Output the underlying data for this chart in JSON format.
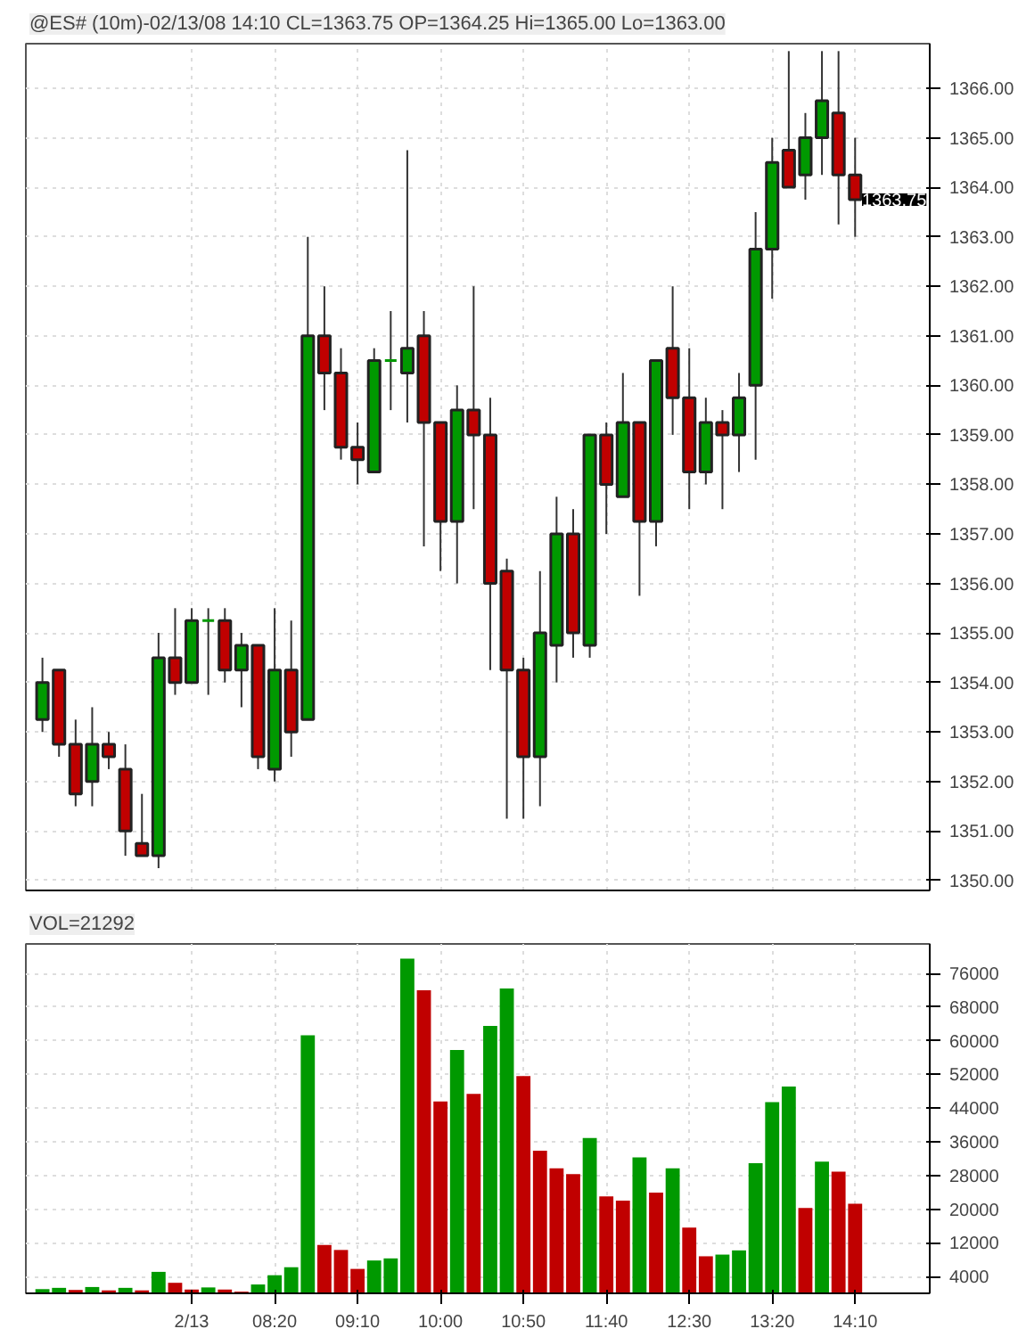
{
  "chart_data": [
    {
      "type": "candlestick",
      "title": "@ES# (10m)-02/13/08 14:10 CL=1363.75 OP=1364.25 Hi=1365.00 Lo=1363.00",
      "categories": [
        null,
        null,
        null,
        null,
        null,
        null,
        null,
        null,
        null,
        null,
        null,
        null,
        null,
        null,
        null,
        null,
        null,
        null,
        null,
        null,
        null,
        null,
        null,
        null,
        null,
        null,
        null,
        null,
        null,
        null,
        null,
        null,
        null,
        null,
        null,
        null,
        null,
        null,
        null,
        null,
        null,
        null,
        null,
        null,
        null,
        null,
        null,
        null,
        null,
        null
      ],
      "ohlc": [
        [
          1353.25,
          1354.5,
          1353.0,
          1354.0
        ],
        [
          1354.25,
          1354.25,
          1352.5,
          1352.75
        ],
        [
          1352.75,
          1353.25,
          1351.5,
          1351.75
        ],
        [
          1352.0,
          1353.5,
          1351.5,
          1352.75
        ],
        [
          1352.75,
          1353.0,
          1352.25,
          1352.5
        ],
        [
          1352.25,
          1352.75,
          1350.5,
          1351.0
        ],
        [
          1350.75,
          1351.75,
          1350.5,
          1350.5
        ],
        [
          1350.5,
          1355.0,
          1350.25,
          1354.5
        ],
        [
          1354.5,
          1355.5,
          1353.75,
          1354.0
        ],
        [
          1354.0,
          1355.5,
          1354.0,
          1355.25
        ],
        [
          1355.25,
          1355.5,
          1353.75,
          1355.25
        ],
        [
          1355.25,
          1355.5,
          1354.0,
          1354.25
        ],
        [
          1354.25,
          1355.0,
          1353.5,
          1354.75
        ],
        [
          1354.75,
          1354.75,
          1352.25,
          1352.5
        ],
        [
          1352.25,
          1355.5,
          1352.0,
          1354.25
        ],
        [
          1354.25,
          1355.25,
          1352.5,
          1353.0
        ],
        [
          1353.25,
          1363.0,
          1353.25,
          1361.0
        ],
        [
          1361.0,
          1362.0,
          1359.5,
          1360.25
        ],
        [
          1360.25,
          1360.75,
          1358.5,
          1358.75
        ],
        [
          1358.75,
          1359.25,
          1358.0,
          1358.5
        ],
        [
          1358.25,
          1360.75,
          1358.25,
          1360.5
        ],
        [
          1360.5,
          1361.5,
          1359.5,
          1360.5
        ],
        [
          1360.25,
          1364.75,
          1359.25,
          1360.75
        ],
        [
          1361.0,
          1361.5,
          1356.75,
          1359.25
        ],
        [
          1359.25,
          1359.25,
          1356.25,
          1357.25
        ],
        [
          1357.25,
          1360.0,
          1356.0,
          1359.5
        ],
        [
          1359.5,
          1362.0,
          1357.5,
          1359.0
        ],
        [
          1359.0,
          1359.75,
          1354.25,
          1356.0
        ],
        [
          1356.25,
          1356.5,
          1351.25,
          1354.25
        ],
        [
          1354.25,
          1354.5,
          1351.25,
          1352.5
        ],
        [
          1352.5,
          1356.25,
          1351.5,
          1355.0
        ],
        [
          1354.75,
          1357.75,
          1354.0,
          1357.0
        ],
        [
          1357.0,
          1357.5,
          1354.5,
          1355.0
        ],
        [
          1354.75,
          1359.0,
          1354.5,
          1359.0
        ],
        [
          1359.0,
          1359.25,
          1357.0,
          1358.0
        ],
        [
          1357.75,
          1360.25,
          1357.75,
          1359.25
        ],
        [
          1359.25,
          1359.25,
          1355.75,
          1357.25
        ],
        [
          1357.25,
          1360.5,
          1356.75,
          1360.5
        ],
        [
          1360.75,
          1362.0,
          1359.0,
          1359.75
        ],
        [
          1359.75,
          1360.75,
          1357.5,
          1358.25
        ],
        [
          1358.25,
          1359.75,
          1358.0,
          1359.25
        ],
        [
          1359.25,
          1359.5,
          1357.5,
          1359.0
        ],
        [
          1359.0,
          1360.25,
          1358.25,
          1359.75
        ],
        [
          1360.0,
          1363.5,
          1358.5,
          1362.75
        ],
        [
          1362.75,
          1365.0,
          1361.75,
          1364.5
        ],
        [
          1364.75,
          1366.75,
          1364.0,
          1364.0
        ],
        [
          1364.25,
          1365.5,
          1363.75,
          1365.0
        ],
        [
          1365.0,
          1366.75,
          1364.25,
          1365.75
        ],
        [
          1365.5,
          1366.75,
          1363.25,
          1364.25
        ],
        [
          1364.25,
          1365.0,
          1363.0,
          1363.75
        ]
      ],
      "colors": [
        "#009900",
        "#c00000",
        "#c00000",
        "#009900",
        "#c00000",
        "#c00000",
        "#c00000",
        "#009900",
        "#c00000",
        "#009900",
        "#009900",
        "#c00000",
        "#009900",
        "#c00000",
        "#009900",
        "#c00000",
        "#009900",
        "#c00000",
        "#c00000",
        "#c00000",
        "#009900",
        "#009900",
        "#009900",
        "#c00000",
        "#c00000",
        "#009900",
        "#c00000",
        "#c00000",
        "#c00000",
        "#c00000",
        "#009900",
        "#009900",
        "#c00000",
        "#009900",
        "#c00000",
        "#009900",
        "#c00000",
        "#009900",
        "#c00000",
        "#c00000",
        "#009900",
        "#c00000",
        "#009900",
        "#009900",
        "#009900",
        "#c00000",
        "#009900",
        "#009900",
        "#c00000",
        "#c00000"
      ],
      "ylim": [
        1349.8,
        1366.9
      ],
      "yticks": [
        {
          "value": 1350,
          "label": "1350.00"
        },
        {
          "value": 1351,
          "label": "1351.00"
        },
        {
          "value": 1352,
          "label": "1352.00"
        },
        {
          "value": 1353,
          "label": "1353.00"
        },
        {
          "value": 1354,
          "label": "1354.00"
        },
        {
          "value": 1355,
          "label": "1355.00"
        },
        {
          "value": 1356,
          "label": "1356.00"
        },
        {
          "value": 1357,
          "label": "1357.00"
        },
        {
          "value": 1358,
          "label": "1358.00"
        },
        {
          "value": 1359,
          "label": "1359.00"
        },
        {
          "value": 1360,
          "label": "1360.00"
        },
        {
          "value": 1361,
          "label": "1361.00"
        },
        {
          "value": 1362,
          "label": "1362.00"
        },
        {
          "value": 1363,
          "label": "1363.00"
        },
        {
          "value": 1364,
          "label": "1364.00"
        },
        {
          "value": 1365,
          "label": "1365.00"
        },
        {
          "value": 1366,
          "label": "1366.00"
        }
      ],
      "grid": true,
      "tick_labels": "y",
      "annotations": [
        "1363.75"
      ]
    },
    {
      "type": "bar",
      "title": "VOL=21292",
      "categories": [
        null,
        null,
        null,
        null,
        null,
        null,
        null,
        null,
        null,
        "2/13",
        null,
        null,
        null,
        null,
        "08:20",
        null,
        null,
        null,
        null,
        "09:10",
        null,
        null,
        null,
        null,
        "10:00",
        null,
        null,
        null,
        null,
        "10:50",
        null,
        null,
        null,
        null,
        "11:40",
        null,
        null,
        null,
        null,
        "12:30",
        null,
        null,
        null,
        null,
        "13:20",
        null,
        null,
        null,
        null,
        "14:10"
      ],
      "values": [
        1000,
        1300,
        800,
        1500,
        700,
        1300,
        700,
        5100,
        2500,
        900,
        1400,
        900,
        400,
        2100,
        4300,
        6200,
        61300,
        11500,
        10300,
        5800,
        7800,
        8300,
        79500,
        72000,
        45600,
        57800,
        47400,
        63500,
        72400,
        51600,
        33900,
        29700,
        28300,
        36900,
        23000,
        22000,
        32300,
        23900,
        29700,
        15600,
        8800,
        9200,
        10200,
        30900,
        45400,
        49100,
        20300,
        31300,
        28900,
        21300
      ],
      "colors": [
        "#009900",
        "#009900",
        "#c00000",
        "#009900",
        "#c00000",
        "#009900",
        "#c00000",
        "#009900",
        "#c00000",
        "#c00000",
        "#009900",
        "#c00000",
        "#c00000",
        "#009900",
        "#009900",
        "#009900",
        "#009900",
        "#c00000",
        "#c00000",
        "#c00000",
        "#009900",
        "#009900",
        "#009900",
        "#c00000",
        "#c00000",
        "#009900",
        "#c00000",
        "#009900",
        "#009900",
        "#c00000",
        "#c00000",
        "#c00000",
        "#c00000",
        "#009900",
        "#c00000",
        "#c00000",
        "#009900",
        "#c00000",
        "#009900",
        "#c00000",
        "#c00000",
        "#009900",
        "#009900",
        "#009900",
        "#009900",
        "#009900",
        "#c00000",
        "#009900",
        "#c00000",
        "#c00000"
      ],
      "ylim": [
        0,
        83000
      ],
      "yticks": [
        4000,
        12000,
        20000,
        28000,
        36000,
        44000,
        52000,
        60000,
        68000,
        76000
      ],
      "grid": true
    }
  ]
}
